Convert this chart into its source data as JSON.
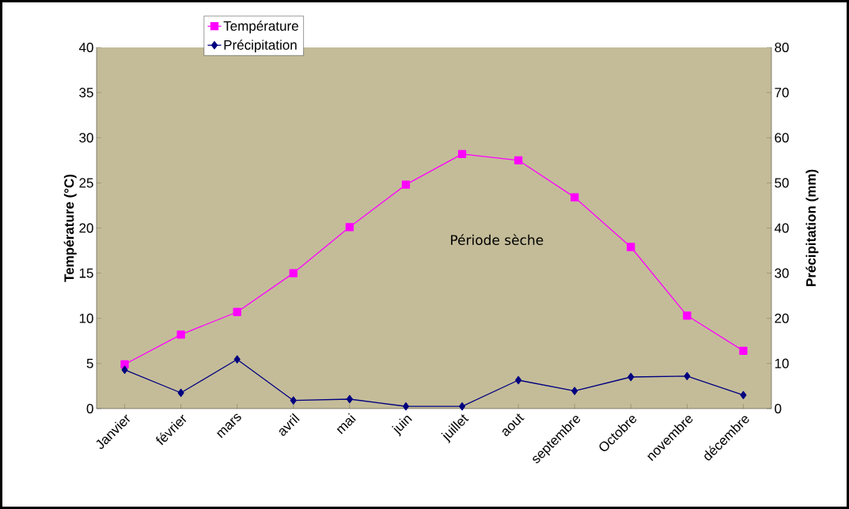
{
  "chart_data": {
    "type": "line",
    "categories": [
      "Janvier",
      "février",
      "mars",
      "avril",
      "mai",
      "juin",
      "juillet",
      "aout",
      "septembre",
      "Octobre",
      "novembre",
      "décembre"
    ],
    "ylabel": "Température (°C)",
    "y2label": "Précipitation (mm)",
    "ylim": [
      0,
      40
    ],
    "yticks": [
      0,
      5,
      10,
      15,
      20,
      25,
      30,
      35,
      40
    ],
    "y2lim": [
      0,
      80
    ],
    "y2ticks": [
      0,
      10,
      20,
      30,
      40,
      50,
      60,
      70,
      80
    ],
    "series": [
      {
        "name": "Température",
        "color": "#ff00ff",
        "marker": "square",
        "values": [
          4.9,
          8.2,
          10.7,
          15.0,
          20.1,
          24.8,
          28.2,
          27.5,
          23.4,
          17.9,
          10.3,
          6.4
        ]
      },
      {
        "name": "Précipitation",
        "color": "#000080",
        "marker": "diamond",
        "axis": "y2",
        "values": [
          8.6,
          3.5,
          10.9,
          1.8,
          2.1,
          0.5,
          0.5,
          6.3,
          3.9,
          7.0,
          7.2,
          3.0
        ]
      }
    ],
    "legend": "top left",
    "annotations": [
      "Période sèche"
    ]
  }
}
